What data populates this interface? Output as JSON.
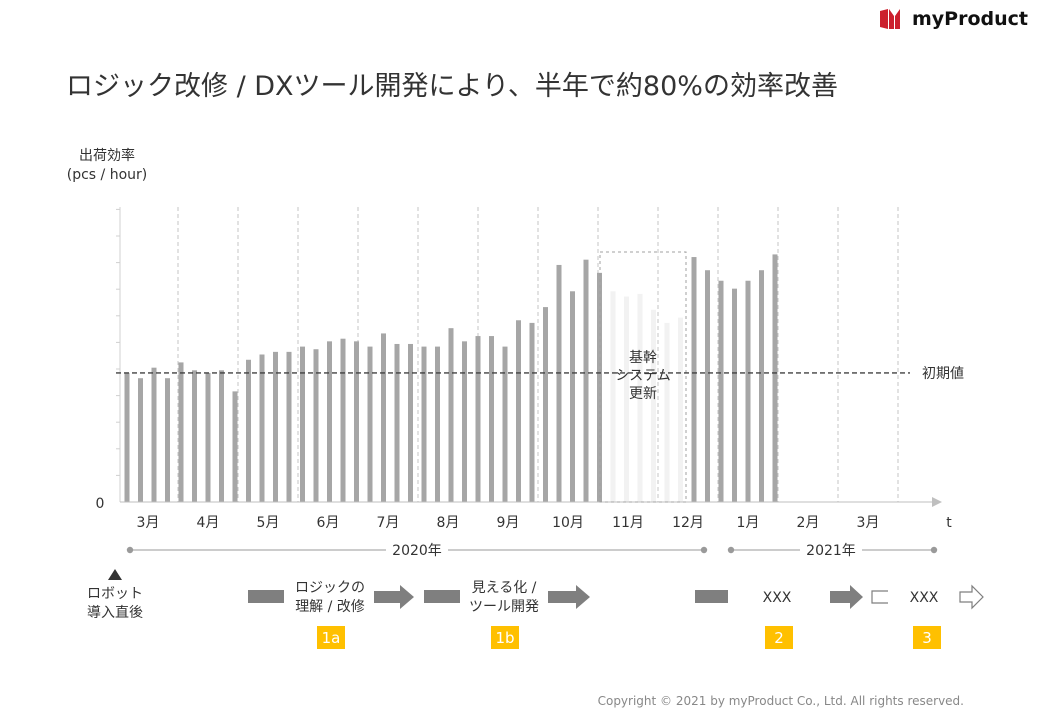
{
  "brand": {
    "logo_text": "myProduct",
    "accent": "#cc1f2d"
  },
  "slide": {
    "title": "ロジック改修 / DXツール開発により、半年で約80%の効率改善"
  },
  "chart_data": {
    "type": "bar",
    "ylabel_line1": "出荷効率",
    "ylabel_line2": "(pcs / hour)",
    "y_zero_label": "0",
    "x_axis_end_label": "t",
    "months": [
      "3月",
      "4月",
      "5月",
      "6月",
      "7月",
      "8月",
      "9月",
      "10月",
      "11月",
      "12月",
      "1月",
      "2月",
      "3月"
    ],
    "series": [
      {
        "values": [
          49,
          47,
          51,
          47,
          53,
          50,
          49,
          50,
          42,
          54,
          56,
          57,
          57,
          59,
          58,
          61,
          62,
          61,
          59,
          64,
          60,
          60,
          59,
          59,
          66,
          61,
          63,
          63,
          59,
          69,
          68,
          74,
          90,
          80,
          92,
          87,
          80,
          78,
          79,
          73,
          68,
          70,
          93,
          88,
          84,
          81,
          84,
          88,
          94
        ],
        "faded_from_index": 36,
        "faded_to_index": 41
      }
    ],
    "baseline_value": 49,
    "baseline_label": "初期値",
    "ymax": 112,
    "highlight_label_lines": [
      "基幹",
      "システム",
      "更新"
    ],
    "bar_color": "#a6a6a6",
    "faded_bar_color": "#f2f2f2"
  },
  "timeline": {
    "year_2020": "2020年",
    "year_2021": "2021年",
    "robot_label_lines": [
      "ロボット",
      "導入直後"
    ],
    "phases": [
      {
        "lines": [
          "ロジックの",
          "理解 / 改修"
        ],
        "badge": "1a"
      },
      {
        "lines": [
          "見える化 /",
          "ツール開発"
        ],
        "badge": "1b"
      },
      {
        "lines": [
          "XXX"
        ],
        "badge": "2"
      },
      {
        "lines": [
          "XXX"
        ],
        "badge": "3"
      }
    ],
    "badge_color": "#ffc000",
    "arrow_color": "#7f7f7f"
  },
  "footer": {
    "copyright": "Copyright © 2021 by myProduct Co., Ltd.  All rights reserved."
  }
}
